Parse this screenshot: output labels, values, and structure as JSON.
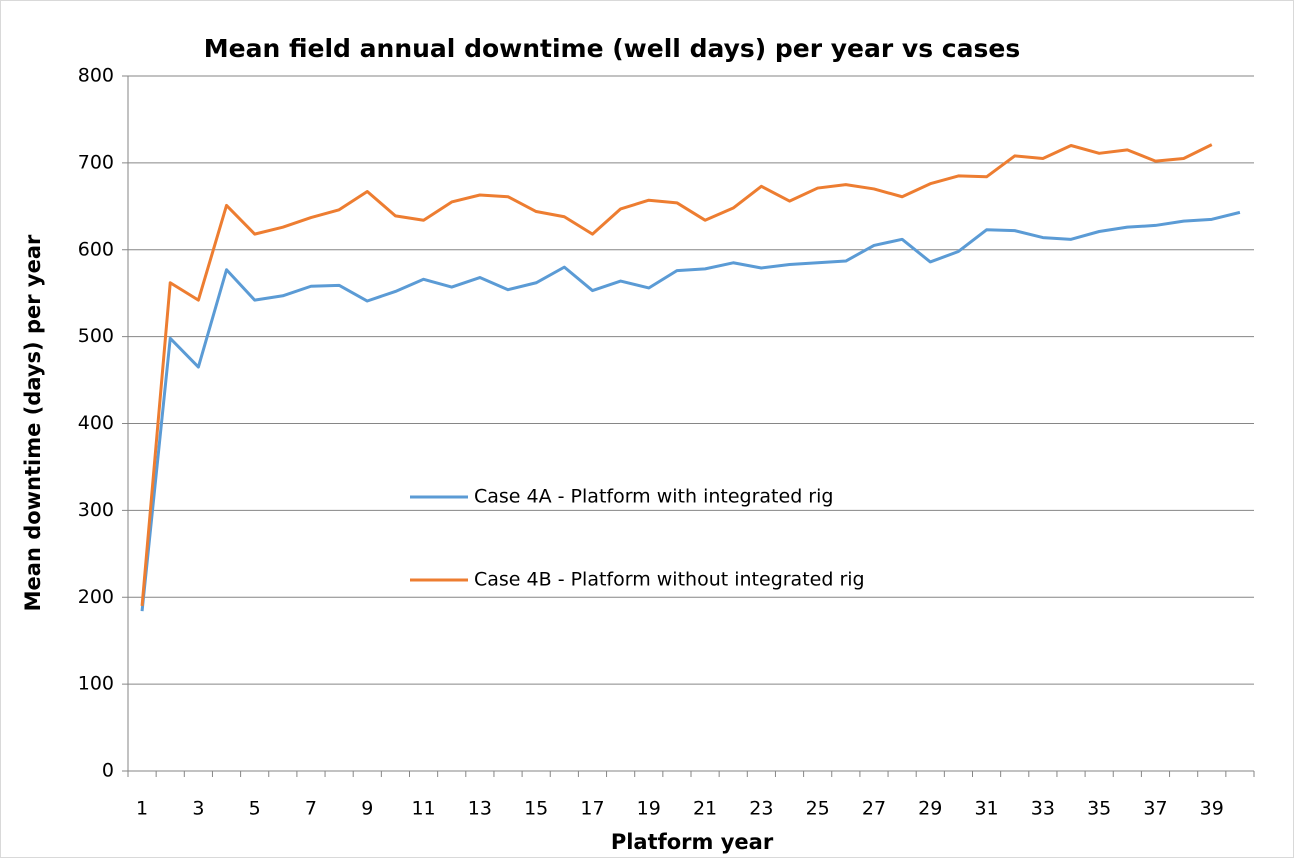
{
  "chart_data": {
    "type": "line",
    "title": "Mean field annual downtime (well days) per year vs cases",
    "x_label": "Platform year",
    "y_label": "Mean downtime (days) per year",
    "categories": [
      "1",
      null,
      "3",
      null,
      "5",
      null,
      "7",
      null,
      "9",
      null,
      "11",
      null,
      "13",
      null,
      "15",
      null,
      "17",
      null,
      "19",
      null,
      "21",
      null,
      "23",
      null,
      "25",
      null,
      "27",
      null,
      "29",
      null,
      "31",
      null,
      "33",
      null,
      "35",
      null,
      "37",
      null,
      "39",
      null
    ],
    "series": [
      {
        "name": "Case 4A - Platform with integrated rig",
        "color": "#5b9bd5",
        "values": [
          184,
          498,
          465,
          577,
          542,
          547,
          558,
          559,
          541,
          552,
          566,
          557,
          568,
          554,
          562,
          580,
          553,
          564,
          556,
          576,
          578,
          585,
          579,
          583,
          585,
          587,
          605,
          612,
          586,
          598,
          623,
          622,
          614,
          612,
          621,
          626,
          628,
          633,
          635,
          643
        ]
      },
      {
        "name": "Case 4B - Platform without integrated rig",
        "color": "#ed7d31",
        "values": [
          190,
          562,
          542,
          651,
          618,
          626,
          637,
          646,
          667,
          639,
          634,
          655,
          663,
          661,
          644,
          638,
          618,
          647,
          657,
          654,
          634,
          648,
          673,
          656,
          671,
          675,
          670,
          661,
          676,
          685,
          684,
          708,
          705,
          720,
          711,
          715,
          702,
          705,
          721,
          null
        ]
      }
    ],
    "ylim": [
      0,
      800
    ],
    "yticks": [
      0,
      100,
      200,
      300,
      400,
      500,
      600,
      700,
      800
    ],
    "grid": true,
    "legend": "center"
  }
}
